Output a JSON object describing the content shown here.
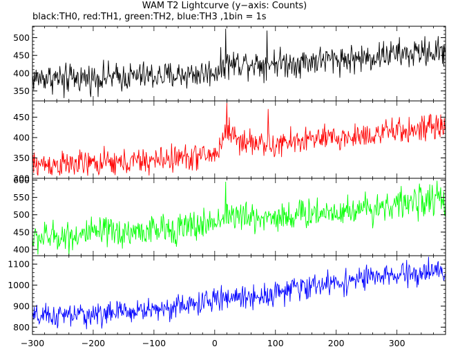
{
  "title": "WAM T2 Lightcurve (y−axis: Counts)",
  "subtitle": "black:TH0, red:TH1, green:TH2, blue:TH3 ,1bin = 1s",
  "chart_data": {
    "type": "line",
    "xlim": [
      -300,
      380
    ],
    "xticks": [
      -300,
      -200,
      -100,
      0,
      100,
      200,
      300
    ],
    "xtick_labels": [
      "−300",
      "−200",
      "−100",
      "0",
      "100",
      "200",
      "300"
    ],
    "grid": false,
    "panels": [
      {
        "name": "TH0",
        "color": "#000000",
        "ylim": [
          322,
          532
        ],
        "yticks": [
          350,
          400,
          450,
          500
        ],
        "ytick_labels": [
          "350",
          "400",
          "450",
          "500"
        ],
        "x": [
          -300,
          -280,
          -260,
          -240,
          -220,
          -200,
          -180,
          -160,
          -140,
          -120,
          -100,
          -80,
          -60,
          -40,
          -20,
          0,
          20,
          40,
          60,
          80,
          100,
          120,
          140,
          160,
          180,
          200,
          220,
          240,
          260,
          280,
          300,
          320,
          340,
          360,
          380
        ],
        "values": [
          385,
          388,
          386,
          384,
          387,
          386,
          389,
          388,
          390,
          392,
          392,
          391,
          395,
          397,
          398,
          405,
          425,
          428,
          430,
          425,
          432,
          428,
          430,
          435,
          438,
          440,
          440,
          442,
          445,
          452,
          455,
          452,
          460,
          458,
          462
        ],
        "noise": 20,
        "spikes": [
          {
            "x": 18,
            "value": 525
          },
          {
            "x": 86,
            "value": 520
          },
          {
            "x": -248,
            "value": 330
          }
        ]
      },
      {
        "name": "TH1",
        "color": "#ff0000",
        "ylim": [
          300,
          490
        ],
        "yticks": [
          300,
          350,
          400,
          450
        ],
        "ytick_labels": [
          "300",
          "350",
          "400",
          "450"
        ],
        "x": [
          -300,
          -280,
          -260,
          -240,
          -220,
          -200,
          -180,
          -160,
          -140,
          -120,
          -100,
          -80,
          -60,
          -40,
          -20,
          0,
          10,
          20,
          30,
          40,
          50,
          60,
          70,
          80,
          90,
          100,
          120,
          140,
          160,
          180,
          200,
          220,
          240,
          260,
          280,
          300,
          320,
          340,
          360,
          380
        ],
        "values": [
          333,
          335,
          334,
          333,
          336,
          335,
          338,
          336,
          340,
          342,
          343,
          348,
          350,
          352,
          355,
          358,
          380,
          425,
          408,
          390,
          392,
          388,
          385,
          392,
          372,
          380,
          388,
          392,
          398,
          395,
          398,
          400,
          405,
          408,
          412,
          415,
          418,
          420,
          425,
          422
        ],
        "noise": 16,
        "spikes": [
          {
            "x": 20,
            "value": 485
          },
          {
            "x": 88,
            "value": 470
          }
        ]
      },
      {
        "name": "TH2",
        "color": "#00ff00",
        "ylim": [
          382,
          605
        ],
        "yticks": [
          400,
          450,
          500,
          550,
          600
        ],
        "ytick_labels": [
          "400",
          "450",
          "500",
          "550",
          "600"
        ],
        "x": [
          -300,
          -280,
          -260,
          -240,
          -220,
          -200,
          -180,
          -160,
          -140,
          -120,
          -100,
          -80,
          -60,
          -40,
          -20,
          0,
          20,
          40,
          60,
          80,
          100,
          120,
          140,
          160,
          180,
          200,
          220,
          240,
          260,
          280,
          300,
          320,
          340,
          360,
          380
        ],
        "values": [
          430,
          435,
          438,
          440,
          442,
          445,
          448,
          448,
          450,
          452,
          455,
          458,
          462,
          465,
          470,
          480,
          500,
          495,
          490,
          492,
          495,
          495,
          500,
          505,
          508,
          510,
          512,
          518,
          520,
          525,
          530,
          535,
          540,
          542,
          545
        ],
        "noise": 22,
        "spikes": [
          {
            "x": 18,
            "value": 595
          },
          {
            "x": 366,
            "value": 598
          }
        ]
      },
      {
        "name": "TH3",
        "color": "#0000ff",
        "ylim": [
          765,
          1140
        ],
        "yticks": [
          800,
          900,
          1000,
          1100
        ],
        "ytick_labels": [
          "800",
          "900",
          "1000",
          "1100"
        ],
        "x": [
          -300,
          -280,
          -260,
          -240,
          -220,
          -200,
          -180,
          -160,
          -140,
          -120,
          -100,
          -80,
          -60,
          -40,
          -20,
          0,
          20,
          40,
          60,
          80,
          100,
          120,
          140,
          160,
          180,
          200,
          220,
          240,
          260,
          280,
          300,
          320,
          340,
          360,
          380
        ],
        "values": [
          845,
          850,
          852,
          855,
          858,
          860,
          865,
          870,
          875,
          880,
          885,
          890,
          900,
          905,
          915,
          930,
          940,
          945,
          945,
          950,
          965,
          975,
          985,
          995,
          1005,
          1010,
          1020,
          1030,
          1035,
          1040,
          1045,
          1050,
          1055,
          1060,
          1060
        ],
        "noise": 28,
        "spikes": [
          {
            "x": 352,
            "value": 1135
          }
        ]
      }
    ]
  }
}
